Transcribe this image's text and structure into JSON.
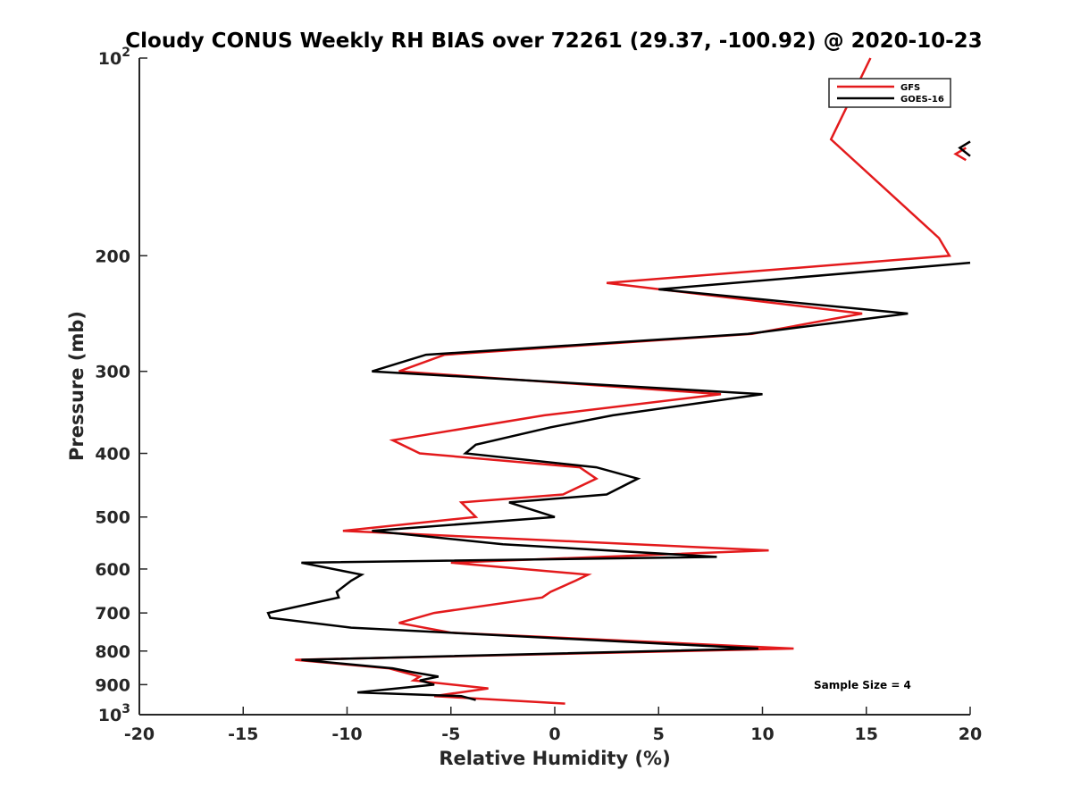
{
  "chart_data": {
    "type": "line",
    "title": "Cloudy CONUS Weekly RH BIAS over 72261 (29.37, -100.92) @ 2020-10-23",
    "xlabel": "Relative Humidity (%)",
    "ylabel": "Pressure (mb)",
    "xlim": [
      -20,
      20
    ],
    "ylim": [
      100,
      1000
    ],
    "y_scale": "log",
    "y_reversed": true,
    "grid": false,
    "legend_position": "top-right",
    "x_ticks": [
      "-20",
      "-15",
      "-10",
      "-5",
      "0",
      "5",
      "10",
      "15",
      "20"
    ],
    "y_ticks": [
      {
        "value": 100,
        "base": "10",
        "exp": "2"
      },
      {
        "value": 200,
        "label": "200"
      },
      {
        "value": 300,
        "label": "300"
      },
      {
        "value": 400,
        "label": "400"
      },
      {
        "value": 500,
        "label": "500"
      },
      {
        "value": 600,
        "label": "600"
      },
      {
        "value": 700,
        "label": "700"
      },
      {
        "value": 800,
        "label": "800"
      },
      {
        "value": 900,
        "label": "900"
      },
      {
        "value": 1000,
        "base": "10",
        "exp": "3"
      }
    ],
    "annotation": "Sample Size = 4",
    "series": [
      {
        "name": "GFS",
        "color": "#e31a1c",
        "points": [
          [
            15.2,
            100
          ],
          [
            13.3,
            133
          ],
          [
            18.5,
            188
          ],
          [
            19.0,
            200
          ],
          [
            2.5,
            220
          ],
          [
            14.8,
            245
          ],
          [
            9.5,
            263
          ],
          [
            -5.3,
            283
          ],
          [
            -7.5,
            300
          ],
          [
            8.0,
            325
          ],
          [
            -0.5,
            350
          ],
          [
            -7.8,
            382
          ],
          [
            -6.5,
            400
          ],
          [
            1.2,
            420
          ],
          [
            2.0,
            437
          ],
          [
            0.4,
            462
          ],
          [
            -4.5,
            475
          ],
          [
            -3.8,
            500
          ],
          [
            -10.2,
            525
          ],
          [
            10.3,
            562
          ],
          [
            -5.0,
            587
          ],
          [
            1.6,
            612
          ],
          [
            1.0,
            625
          ],
          [
            -0.2,
            650
          ],
          [
            -0.6,
            663
          ],
          [
            -5.8,
            700
          ],
          [
            -7.5,
            725
          ],
          [
            -5.0,
            750
          ],
          [
            11.5,
            793
          ],
          [
            -12.5,
            825
          ],
          [
            -8.0,
            850
          ],
          [
            -6.5,
            875
          ],
          [
            -6.8,
            887
          ],
          [
            -3.2,
            912
          ],
          [
            -5.8,
            937
          ],
          [
            0.5,
            962
          ]
        ]
      },
      {
        "name": "GOES-16",
        "color": "#000000",
        "points": [
          [
            20.0,
            205
          ],
          [
            5.0,
            225
          ],
          [
            17.0,
            245
          ],
          [
            9.3,
            263
          ],
          [
            -6.2,
            283
          ],
          [
            -8.8,
            300
          ],
          [
            10.0,
            325
          ],
          [
            2.8,
            350
          ],
          [
            -0.2,
            365
          ],
          [
            -3.8,
            388
          ],
          [
            -4.3,
            400
          ],
          [
            2.0,
            420
          ],
          [
            4.0,
            437
          ],
          [
            2.5,
            462
          ],
          [
            -2.2,
            475
          ],
          [
            0.0,
            500
          ],
          [
            -8.8,
            525
          ],
          [
            -2.5,
            550
          ],
          [
            7.8,
            575
          ],
          [
            -12.2,
            587
          ],
          [
            -9.3,
            612
          ],
          [
            -9.8,
            625
          ],
          [
            -10.5,
            650
          ],
          [
            -10.4,
            663
          ],
          [
            -13.8,
            700
          ],
          [
            -13.7,
            712
          ],
          [
            -9.8,
            737
          ],
          [
            9.8,
            793
          ],
          [
            -12.2,
            825
          ],
          [
            -7.8,
            850
          ],
          [
            -6.8,
            862
          ],
          [
            -5.6,
            875
          ],
          [
            -6.5,
            887
          ],
          [
            -5.8,
            900
          ],
          [
            -9.5,
            925
          ],
          [
            -4.5,
            937
          ],
          [
            -3.8,
            950
          ]
        ]
      }
    ],
    "stray_mark_gfs": [
      [
        19.8,
        137
      ],
      [
        19.3,
        140
      ],
      [
        19.8,
        143
      ]
    ],
    "stray_mark_goes": [
      [
        20.0,
        134
      ],
      [
        19.5,
        137
      ],
      [
        20.0,
        141
      ]
    ]
  }
}
